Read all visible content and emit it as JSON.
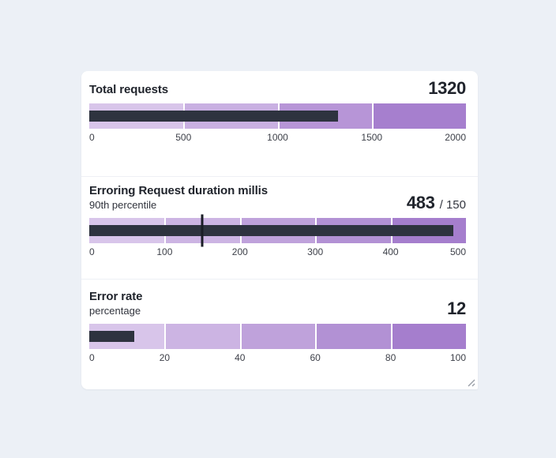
{
  "page_background": "#ecf0f6",
  "card_background": "#ffffff",
  "colors": {
    "measure_bar": "#2e333f",
    "target_marker": "#1a1d26",
    "title_text": "#20242c",
    "subtitle_text": "#30333c",
    "axis_label": "#3d4049",
    "divider": "#eef0f5",
    "band_gap": "#ffffff",
    "resize_grip": "#9aa0a8"
  },
  "chart_data": [
    {
      "type": "bullet",
      "title": "Total requests",
      "subtitle": "",
      "value": 1320,
      "value_display": "1320",
      "value_suffix": "",
      "target": null,
      "range": [
        0,
        2000
      ],
      "ticks": [
        "0",
        "500",
        "1000",
        "1500",
        "2000"
      ],
      "bands": [
        {
          "from": 0,
          "to": 500,
          "color": "#d8c5ea"
        },
        {
          "from": 500,
          "to": 1000,
          "color": "#c9b0e2"
        },
        {
          "from": 1000,
          "to": 1500,
          "color": "#b795d7"
        },
        {
          "from": 1500,
          "to": 2000,
          "color": "#a67fce"
        }
      ]
    },
    {
      "type": "bullet",
      "title": "Erroring Request duration millis",
      "subtitle": "90th percentile",
      "value": 483,
      "value_display": "483",
      "value_suffix": "/ 150",
      "target": 150,
      "range": [
        0,
        500
      ],
      "ticks": [
        "0",
        "100",
        "200",
        "300",
        "400",
        "500"
      ],
      "bands": [
        {
          "from": 0,
          "to": 100,
          "color": "#d8c5ea"
        },
        {
          "from": 100,
          "to": 200,
          "color": "#ccb4e3"
        },
        {
          "from": 200,
          "to": 300,
          "color": "#bfa2db"
        },
        {
          "from": 300,
          "to": 400,
          "color": "#b291d4"
        },
        {
          "from": 400,
          "to": 500,
          "color": "#a57ecd"
        }
      ]
    },
    {
      "type": "bullet",
      "title": "Error rate",
      "subtitle": "percentage",
      "value": 12,
      "value_display": "12",
      "value_suffix": "",
      "target": null,
      "range": [
        0,
        100
      ],
      "ticks": [
        "0",
        "20",
        "40",
        "60",
        "80",
        "100"
      ],
      "bands": [
        {
          "from": 0,
          "to": 20,
          "color": "#d8c5ea"
        },
        {
          "from": 20,
          "to": 40,
          "color": "#ccb4e3"
        },
        {
          "from": 40,
          "to": 60,
          "color": "#bfa2db"
        },
        {
          "from": 60,
          "to": 80,
          "color": "#b291d4"
        },
        {
          "from": 80,
          "to": 100,
          "color": "#a57ecd"
        }
      ]
    }
  ]
}
